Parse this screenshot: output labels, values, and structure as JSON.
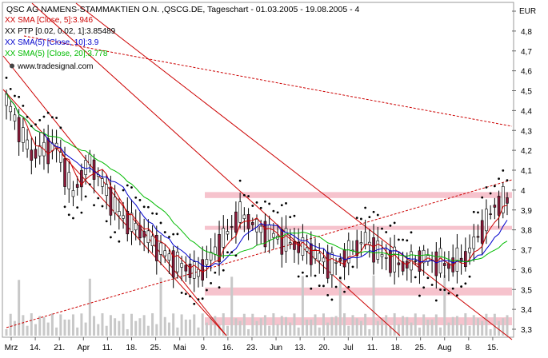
{
  "header": {
    "title": "QSC AG NAMENS-STAMMAKTIEN O.N. ,QSCG.DE, Tageschart - 01.03.2005 - 19.08.2005 - 4",
    "unit": "EUR",
    "watermark": "www.tradesignal.com"
  },
  "legend": [
    {
      "text": "XX SMA [Close, 5]:3.946",
      "color": "#cc0000"
    },
    {
      "text": "XX PTP [0.02, 0.02, 1]:3.85489",
      "color": "#000000"
    },
    {
      "text": "XX SMA(5) [Close, 10]:3.9",
      "color": "#0000cc"
    },
    {
      "text": "XX SMA(5) [Close, 20]:3.778",
      "color": "#00bb00"
    }
  ],
  "chart_data": {
    "type": "candlestick",
    "ylim": [
      3.3,
      4.9
    ],
    "y_ticks": [
      "3,3",
      "3,4",
      "3,5",
      "3,6",
      "3,7",
      "3,8",
      "3,9",
      "4",
      "4,1",
      "4,2",
      "4,3",
      "4,4",
      "4,5",
      "4,6",
      "4,7",
      "4,8",
      "EUR"
    ],
    "x_ticks": [
      "Mrz",
      "14.",
      "21.",
      "Apr",
      "11.",
      "18.",
      "25.",
      "Mai",
      "9.",
      "16.",
      "23.",
      "Jun",
      "13.",
      "20.",
      "Jul",
      "11.",
      "18.",
      "25.",
      "Aug",
      "8.",
      "15."
    ],
    "last_values": {
      "sma5": 3.946,
      "ptp": 3.85489,
      "sma10": 3.9,
      "sma20": 3.778
    },
    "colors": {
      "up": "#ffffff",
      "down": "#8b1a3a",
      "sma5": "#cc0000",
      "sma10": "#0000cc",
      "sma20": "#00bb00",
      "ptp": "#000000",
      "channel": "#cc0000",
      "zone": "#f4b8c4",
      "volume": "#c8c8c8"
    }
  }
}
